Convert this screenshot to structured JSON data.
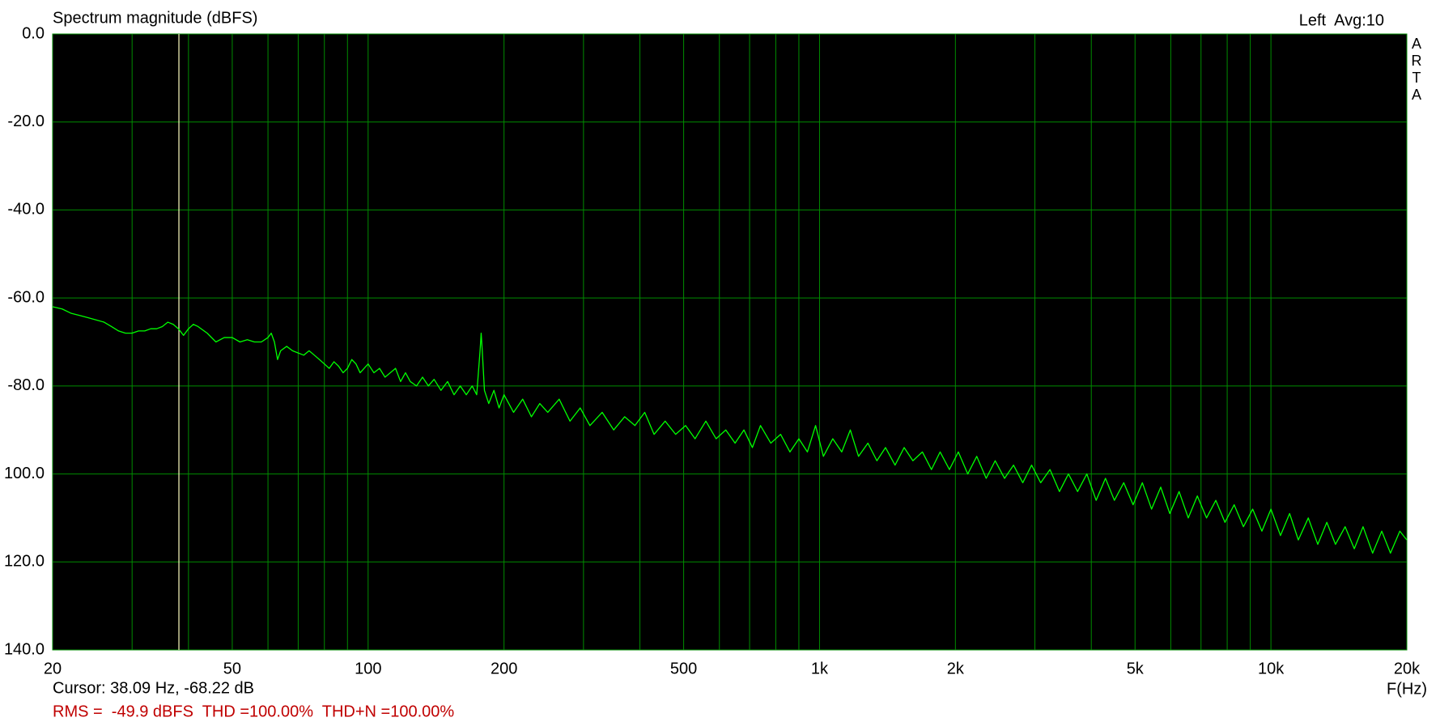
{
  "chart_data": {
    "type": "line",
    "title": "Spectrum magnitude (dBFS)",
    "header_right": "Left  Avg:10",
    "side_label": "ARTA",
    "xlabel": "F(Hz)",
    "status": "RMS =  -49.9 dBFS  THD =100.00%  THD+N =100.00%",
    "cursor": {
      "freq": 38.09,
      "level": -68.22,
      "label": "Cursor: 38.09 Hz, -68.22 dB",
      "color": "#ffffc0"
    },
    "xscale": "log",
    "xlim": [
      20,
      20000
    ],
    "ylim": [
      -140,
      0
    ],
    "xticks": [
      20,
      50,
      100,
      200,
      500,
      {
        "value": 1000,
        "label": "1k"
      },
      {
        "value": 2000,
        "label": "2k"
      },
      {
        "value": 5000,
        "label": "5k"
      },
      {
        "value": 10000,
        "label": "10k"
      },
      {
        "value": 20000,
        "label": "20k"
      }
    ],
    "minor_xticks": [
      30,
      40,
      60,
      70,
      80,
      90,
      300,
      400,
      600,
      700,
      800,
      900,
      3000,
      4000,
      6000,
      7000,
      8000,
      9000
    ],
    "yticks": [
      {
        "value": 0,
        "label": "0.0"
      },
      {
        "value": -20,
        "label": "-20.0"
      },
      {
        "value": -40,
        "label": "-40.0"
      },
      {
        "value": -60,
        "label": "-60.0"
      },
      {
        "value": -80,
        "label": "-80.0"
      },
      {
        "value": -100,
        "label": "100.0"
      },
      {
        "value": -120,
        "label": "120.0"
      },
      {
        "value": -140,
        "label": "140.0"
      }
    ],
    "grid": true,
    "grid_color": "#008c00",
    "background": "#000000",
    "color": "#00ff00",
    "x": [
      20,
      21,
      22,
      23,
      24,
      25,
      26,
      27,
      28,
      29,
      30,
      31,
      32,
      33,
      34,
      35,
      36,
      37,
      38,
      39,
      40,
      41,
      42,
      44,
      46,
      48,
      50,
      52,
      54,
      56,
      58,
      60,
      61,
      62,
      63,
      64,
      66,
      68,
      70,
      72,
      74,
      76,
      78,
      80,
      82,
      84,
      86,
      88,
      90,
      92,
      94,
      96,
      98,
      100,
      103,
      106,
      109,
      112,
      115,
      118,
      121,
      124,
      128,
      132,
      136,
      140,
      145,
      150,
      155,
      160,
      165,
      170,
      174,
      177,
      178,
      179,
      181,
      185,
      190,
      195,
      200,
      210,
      220,
      230,
      240,
      250,
      265,
      280,
      295,
      310,
      330,
      350,
      370,
      390,
      410,
      430,
      455,
      480,
      505,
      530,
      560,
      590,
      620,
      650,
      680,
      710,
      740,
      780,
      820,
      860,
      900,
      940,
      980,
      1020,
      1070,
      1120,
      1170,
      1220,
      1280,
      1340,
      1400,
      1470,
      1540,
      1610,
      1690,
      1770,
      1850,
      1940,
      2030,
      2130,
      2230,
      2340,
      2450,
      2570,
      2690,
      2820,
      2950,
      3090,
      3240,
      3400,
      3560,
      3730,
      3910,
      4100,
      4300,
      4500,
      4720,
      4950,
      5190,
      5440,
      5700,
      5970,
      6260,
      6560,
      6870,
      7200,
      7550,
      7910,
      8290,
      8690,
      9110,
      9550,
      10000,
      10500,
      11000,
      11500,
      12100,
      12700,
      13300,
      13900,
      14600,
      15300,
      16000,
      16800,
      17600,
      18400,
      19300,
      20000
    ],
    "values": [
      -62,
      -62.5,
      -63.5,
      -64,
      -64.5,
      -65,
      -65.5,
      -66.5,
      -67.5,
      -68,
      -68,
      -67.5,
      -67.5,
      -67,
      -67,
      -66.5,
      -65.5,
      -66,
      -67,
      -68.5,
      -67,
      -66,
      -66.5,
      -68,
      -70,
      -69,
      -69,
      -70,
      -69.5,
      -70,
      -70,
      -69,
      -68,
      -70,
      -74,
      -72,
      -71,
      -72,
      -72.5,
      -73,
      -72,
      -73,
      -74,
      -75,
      -76,
      -74.5,
      -75.5,
      -77,
      -76,
      -74,
      -75,
      -77,
      -76,
      -75,
      -77,
      -76,
      -78,
      -77,
      -76,
      -79,
      -77,
      -79,
      -80,
      -78,
      -80,
      -78.5,
      -81,
      -79,
      -82,
      -80,
      -82,
      -80,
      -82,
      -72,
      -68,
      -72,
      -81,
      -84,
      -81,
      -85,
      -82,
      -86,
      -83,
      -87,
      -84,
      -86,
      -83,
      -88,
      -85,
      -89,
      -86,
      -90,
      -87,
      -89,
      -86,
      -91,
      -88,
      -91,
      -89,
      -92,
      -88,
      -92,
      -90,
      -93,
      -90,
      -94,
      -89,
      -93,
      -91,
      -95,
      -92,
      -95,
      -89,
      -96,
      -92,
      -95,
      -90,
      -96,
      -93,
      -97,
      -94,
      -98,
      -94,
      -97,
      -95,
      -99,
      -95,
      -99,
      -95,
      -100,
      -96,
      -101,
      -97,
      -101,
      -98,
      -102,
      -98,
      -102,
      -99,
      -104,
      -100,
      -104,
      -100,
      -106,
      -101,
      -106,
      -102,
      -107,
      -102,
      -108,
      -103,
      -109,
      -104,
      -110,
      -105,
      -110,
      -106,
      -111,
      -107,
      -112,
      -108,
      -113,
      -108,
      -114,
      -109,
      -115,
      -110,
      -116,
      -111,
      -116,
      -112,
      -117,
      -112,
      -118,
      -113,
      -118,
      -113,
      -115
    ]
  }
}
